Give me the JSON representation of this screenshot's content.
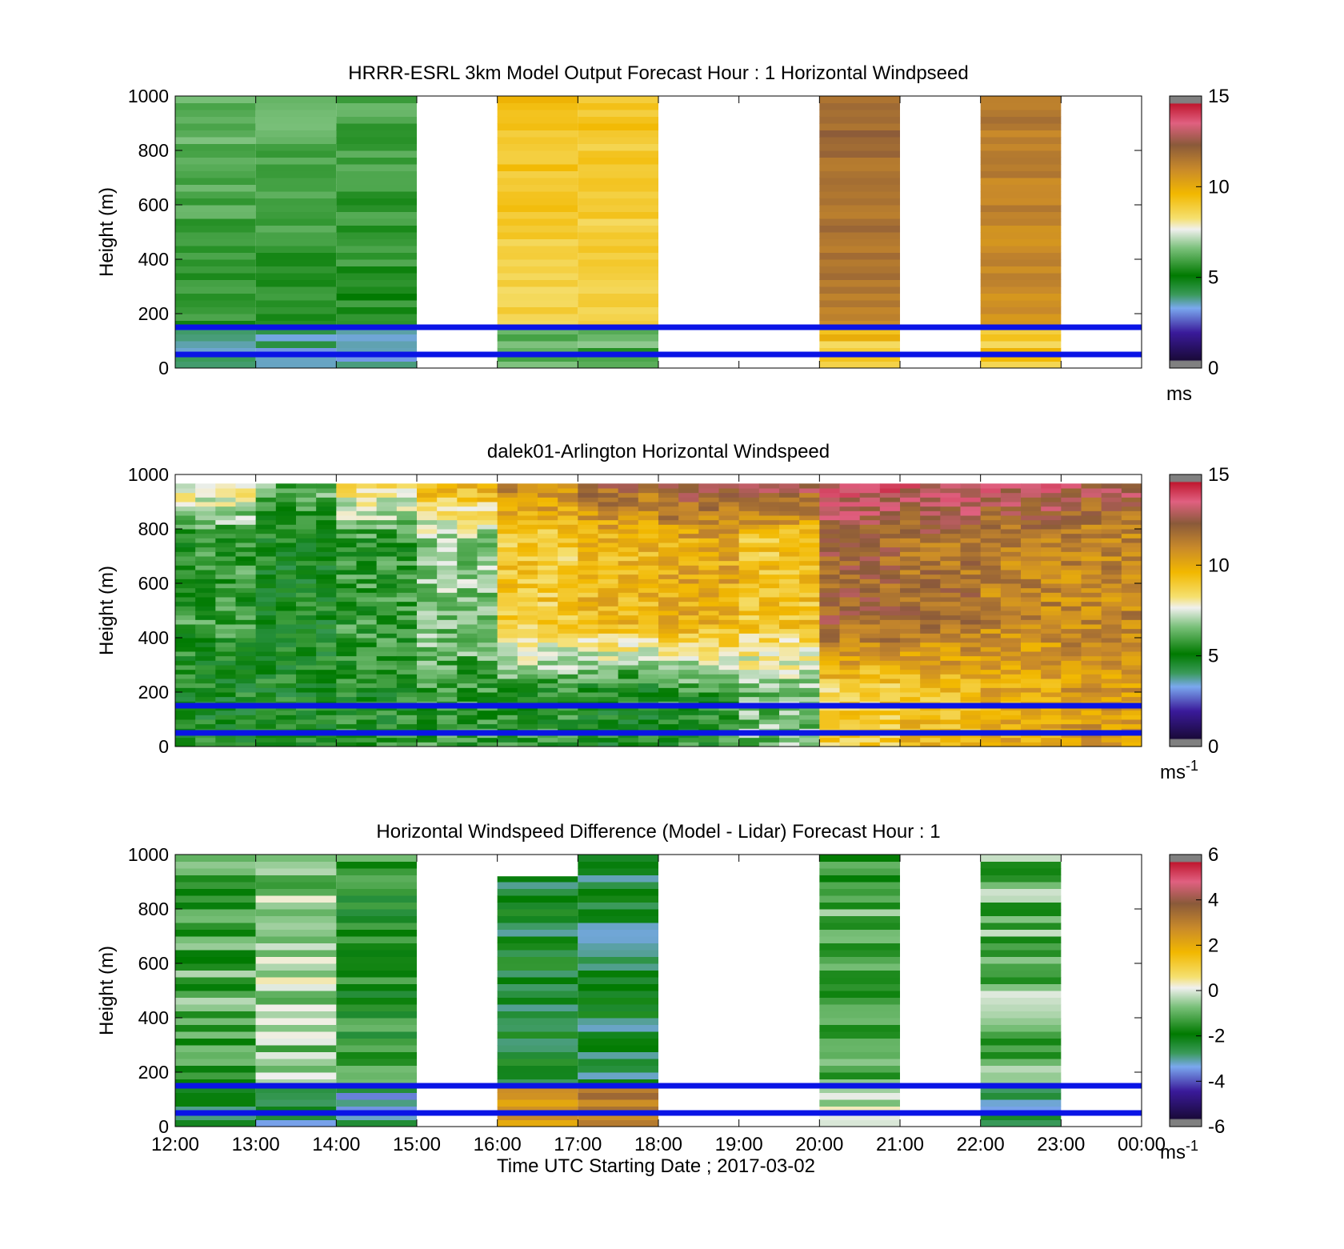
{
  "figure": {
    "xlabel": "Time UTC  Starting Date ; 2017-03-02",
    "x_tick_labels": [
      "12:00",
      "13:00",
      "14:00",
      "15:00",
      "16:00",
      "17:00",
      "18:00",
      "19:00",
      "20:00",
      "21:00",
      "22:00",
      "23:00",
      "00:00"
    ]
  },
  "chart_data": [
    {
      "id": "model",
      "type": "heatmap",
      "title": "HRRR-ESRL 3km Model Output   Forecast Hour : 1 Horizontal Windpseed",
      "ylabel": "Height (m)",
      "xlim": [
        "12:00",
        "00:00"
      ],
      "ylim": [
        0,
        1000
      ],
      "y_ticks": [
        0,
        200,
        400,
        600,
        800,
        1000
      ],
      "colorbar": {
        "ticks": [
          0,
          5,
          10,
          15
        ],
        "clim": [
          0,
          15
        ],
        "unit": "ms",
        "unit_sup": ""
      },
      "reference_lines_m": [
        50,
        150
      ],
      "columns": [
        {
          "start": 0,
          "end": 1,
          "color_value": 5.4,
          "max_height": 1000,
          "low_value": 3.8
        },
        {
          "start": 1,
          "end": 2,
          "color_value": 5.3,
          "max_height": 1000,
          "low_value": 3.5
        },
        {
          "start": 2,
          "end": 3,
          "color_value": 5.2,
          "max_height": 1000,
          "low_value": 3.6
        },
        {
          "start": 4,
          "end": 5,
          "color_value": 8.6,
          "max_height": 1000,
          "low_value": 6.5
        },
        {
          "start": 5,
          "end": 6,
          "color_value": 8.4,
          "max_height": 1000,
          "low_value": 6.0
        },
        {
          "start": 8,
          "end": 9,
          "color_value": 11.2,
          "max_height": 1000,
          "low_value": 9.2
        },
        {
          "start": 10,
          "end": 11,
          "color_value": 10.6,
          "max_height": 1000,
          "low_value": 9.2
        }
      ]
    },
    {
      "id": "lidar",
      "type": "heatmap",
      "title": "dalek01-Arlington  Horizontal Windspeed",
      "ylabel": "Height (m)",
      "xlim": [
        "12:00",
        "00:00"
      ],
      "ylim": [
        0,
        1000
      ],
      "y_ticks": [
        0,
        200,
        400,
        600,
        800,
        1000
      ],
      "colorbar": {
        "ticks": [
          0,
          5,
          10,
          15
        ],
        "clim": [
          0,
          15
        ],
        "unit": "ms",
        "unit_sup": "-1"
      },
      "reference_lines_m": [
        50,
        150
      ],
      "hourly_profiles": [
        {
          "hour": "12:00",
          "low": 5.0,
          "mid": 5.6,
          "high": 8.6
        },
        {
          "hour": "13:00",
          "low": 5.0,
          "mid": 5.0,
          "high": 6.5
        },
        {
          "hour": "14:00",
          "low": 5.2,
          "mid": 5.6,
          "high": 9.0
        },
        {
          "hour": "15:00",
          "low": 5.6,
          "mid": 6.6,
          "high": 10.5
        },
        {
          "hour": "16:00",
          "low": 5.4,
          "mid": 9.0,
          "high": 11.6
        },
        {
          "hour": "17:00",
          "low": 5.0,
          "mid": 9.6,
          "high": 12.5
        },
        {
          "hour": "18:00",
          "low": 5.4,
          "mid": 10.0,
          "high": 13.5
        },
        {
          "hour": "19:00",
          "low": 6.4,
          "mid": 9.2,
          "high": 13.5
        },
        {
          "hour": "20:00",
          "low": 8.8,
          "mid": 12.0,
          "high": 14.0
        },
        {
          "hour": "21:00",
          "low": 9.4,
          "mid": 11.6,
          "high": 14.0
        },
        {
          "hour": "22:00",
          "low": 10.0,
          "mid": 11.0,
          "high": 14.0
        },
        {
          "hour": "23:00",
          "low": 10.4,
          "mid": 11.0,
          "high": 13.2
        }
      ]
    },
    {
      "id": "difference",
      "type": "heatmap",
      "title": "Horizontal Windspeed Difference (Model - Lidar) Forecast Hour : 1",
      "ylabel": "Height (m)",
      "xlim": [
        "12:00",
        "00:00"
      ],
      "ylim": [
        0,
        1000
      ],
      "y_ticks": [
        0,
        200,
        400,
        600,
        800,
        1000
      ],
      "colorbar": {
        "ticks": [
          -6,
          -4,
          -2,
          0,
          2,
          4,
          6
        ],
        "clim": [
          -6,
          6
        ],
        "unit": "ms",
        "unit_sup": "-1"
      },
      "reference_lines_m": [
        50,
        150
      ],
      "columns": [
        {
          "start": 0,
          "end": 1,
          "color_value": -1.3,
          "max_height": 1000,
          "low_value": -2.6
        },
        {
          "start": 1,
          "end": 2,
          "color_value": -0.6,
          "max_height": 1000,
          "low_value": -3.0
        },
        {
          "start": 2,
          "end": 3,
          "color_value": -1.8,
          "max_height": 1000,
          "low_value": -3.2
        },
        {
          "start": 4,
          "end": 5,
          "color_value": -2.4,
          "max_height": 920,
          "low_value": 2.0
        },
        {
          "start": 5,
          "end": 6,
          "color_value": -2.6,
          "max_height": 1000,
          "low_value": 2.8
        },
        {
          "start": 8,
          "end": 9,
          "color_value": -1.2,
          "max_height": 1000,
          "low_value": -0.4
        },
        {
          "start": 10,
          "end": 11,
          "color_value": -1.0,
          "max_height": 1000,
          "low_value": -3.0
        }
      ]
    }
  ]
}
